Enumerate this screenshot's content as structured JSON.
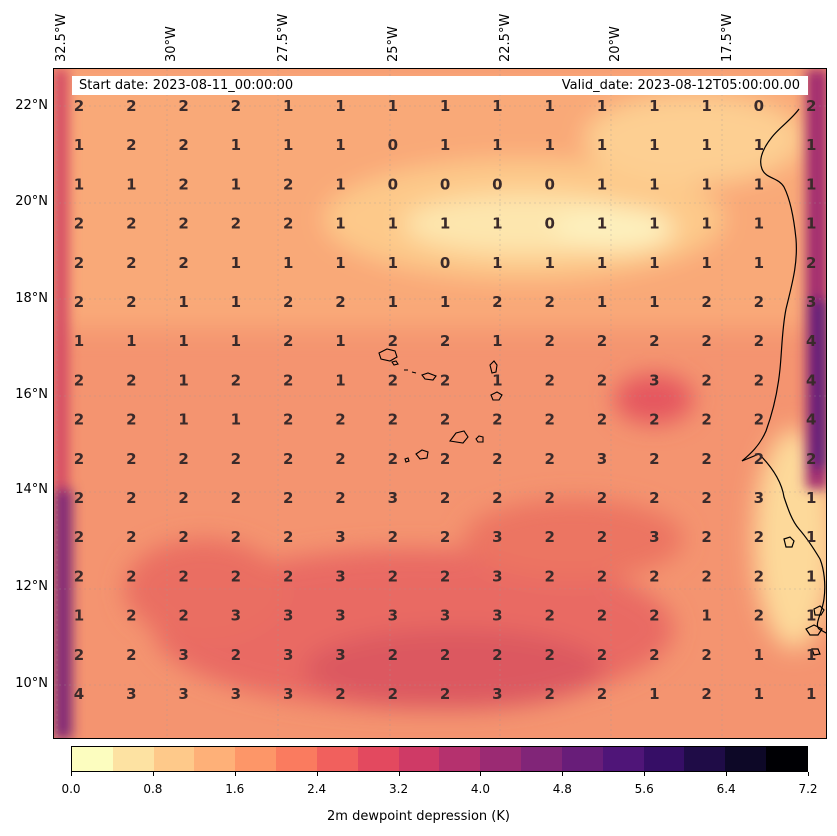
{
  "header": {
    "start_date": "Start date: 2023-08-11_00:00:00",
    "valid_date": "Valid_date: 2023-08-12T05:00:00.00"
  },
  "axes": {
    "lon_labels": [
      "32.5°W",
      "30°W",
      "27.5°W",
      "25°W",
      "22.5°W",
      "20°W",
      "17.5°W"
    ],
    "lat_labels": [
      "22°N",
      "20°N",
      "18°N",
      "16°N",
      "14°N",
      "12°N",
      "10°N"
    ]
  },
  "colorbar": {
    "label": "2m dewpoint depression (K)",
    "ticks": [
      "0.0",
      "0.8",
      "1.6",
      "2.4",
      "3.2",
      "4.0",
      "4.8",
      "5.6",
      "6.4",
      "7.2"
    ],
    "range": [
      0.0,
      7.2
    ],
    "colormap": "magma_r",
    "colors": [
      "#fcfdbf",
      "#fde2a2",
      "#fec98a",
      "#feb078",
      "#fd9668",
      "#fa7b5f",
      "#f1605d",
      "#e3495f",
      "#cf3a66",
      "#b5316e",
      "#9b2a73",
      "#812578",
      "#681d79",
      "#4f1578",
      "#360e66",
      "#1f0c47",
      "#0d0827",
      "#000004"
    ]
  },
  "grid_values": [
    [
      "2",
      "2",
      "2",
      "2",
      "1",
      "1",
      "1",
      "1",
      "1",
      "1",
      "1",
      "1",
      "1",
      "0",
      "2"
    ],
    [
      "1",
      "2",
      "2",
      "1",
      "1",
      "1",
      "0",
      "1",
      "1",
      "1",
      "1",
      "1",
      "1",
      "1",
      "1"
    ],
    [
      "1",
      "1",
      "2",
      "1",
      "2",
      "1",
      "0",
      "0",
      "0",
      "0",
      "1",
      "1",
      "1",
      "1",
      "1"
    ],
    [
      "2",
      "2",
      "2",
      "2",
      "2",
      "1",
      "1",
      "1",
      "1",
      "0",
      "1",
      "1",
      "1",
      "1",
      "1"
    ],
    [
      "2",
      "2",
      "2",
      "1",
      "1",
      "1",
      "1",
      "0",
      "1",
      "1",
      "1",
      "1",
      "1",
      "1",
      "2"
    ],
    [
      "2",
      "2",
      "1",
      "1",
      "2",
      "2",
      "1",
      "1",
      "2",
      "2",
      "1",
      "1",
      "2",
      "2",
      "3"
    ],
    [
      "1",
      "1",
      "1",
      "1",
      "2",
      "1",
      "2",
      "2",
      "1",
      "2",
      "2",
      "2",
      "2",
      "2",
      "4"
    ],
    [
      "2",
      "2",
      "1",
      "2",
      "2",
      "1",
      "2",
      "2",
      "1",
      "2",
      "2",
      "3",
      "2",
      "2",
      "4"
    ],
    [
      "2",
      "2",
      "1",
      "1",
      "2",
      "2",
      "2",
      "2",
      "2",
      "2",
      "2",
      "2",
      "2",
      "2",
      "4"
    ],
    [
      "2",
      "2",
      "2",
      "2",
      "2",
      "2",
      "2",
      "2",
      "2",
      "2",
      "3",
      "2",
      "2",
      "2",
      "2"
    ],
    [
      "2",
      "2",
      "2",
      "2",
      "2",
      "2",
      "3",
      "2",
      "2",
      "2",
      "2",
      "2",
      "2",
      "3",
      "1"
    ],
    [
      "2",
      "2",
      "2",
      "2",
      "2",
      "3",
      "2",
      "2",
      "3",
      "2",
      "2",
      "3",
      "2",
      "2",
      "1"
    ],
    [
      "2",
      "2",
      "2",
      "2",
      "2",
      "3",
      "2",
      "2",
      "3",
      "2",
      "2",
      "2",
      "2",
      "2",
      "1"
    ],
    [
      "1",
      "2",
      "2",
      "3",
      "3",
      "3",
      "3",
      "3",
      "3",
      "2",
      "2",
      "2",
      "1",
      "2",
      "1"
    ],
    [
      "2",
      "2",
      "3",
      "2",
      "3",
      "3",
      "2",
      "2",
      "2",
      "2",
      "2",
      "2",
      "2",
      "1",
      "1"
    ],
    [
      "4",
      "3",
      "3",
      "3",
      "3",
      "2",
      "2",
      "2",
      "3",
      "2",
      "2",
      "1",
      "2",
      "1",
      "1"
    ]
  ]
}
